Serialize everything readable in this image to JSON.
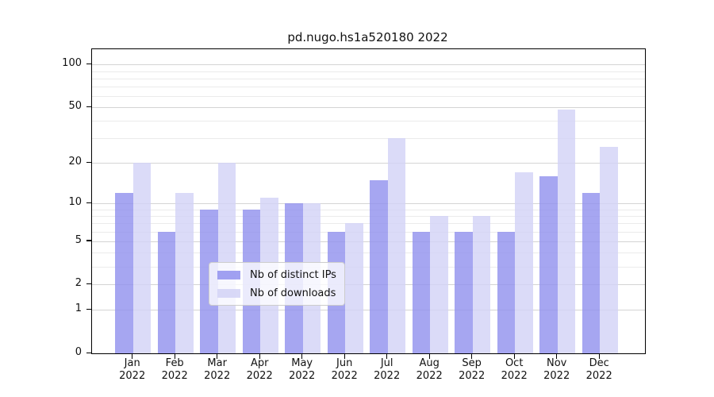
{
  "title": "pd.nugo.hs1a520180 2022",
  "chart_data": {
    "type": "bar",
    "title": "pd.nugo.hs1a520180 2022",
    "y_scale": "log10(value+1)",
    "ylim": [
      0,
      128
    ],
    "y_ticks": [
      100,
      50,
      20,
      10,
      5,
      2,
      1,
      0
    ],
    "y_minor_ticks": [
      3,
      4,
      6,
      7,
      8,
      9,
      30,
      40,
      60,
      70,
      80,
      90
    ],
    "grid": true,
    "legend_position": "lower center",
    "categories": [
      {
        "month": "Jan",
        "year": "2022"
      },
      {
        "month": "Feb",
        "year": "2022"
      },
      {
        "month": "Mar",
        "year": "2022"
      },
      {
        "month": "Apr",
        "year": "2022"
      },
      {
        "month": "May",
        "year": "2022"
      },
      {
        "month": "Jun",
        "year": "2022"
      },
      {
        "month": "Jul",
        "year": "2022"
      },
      {
        "month": "Aug",
        "year": "2022"
      },
      {
        "month": "Sep",
        "year": "2022"
      },
      {
        "month": "Oct",
        "year": "2022"
      },
      {
        "month": "Nov",
        "year": "2022"
      },
      {
        "month": "Dec",
        "year": "2022"
      }
    ],
    "series": [
      {
        "name": "Nb of distinct IPs",
        "color": "#9090ee",
        "values": [
          12,
          6,
          9,
          9,
          10,
          6,
          15,
          6,
          6,
          6,
          16,
          12
        ]
      },
      {
        "name": "Nb of downloads",
        "color": "#d2d2f6",
        "values": [
          20,
          12,
          20,
          11,
          10,
          7,
          30,
          8,
          8,
          17,
          48,
          26
        ]
      }
    ]
  },
  "colors": {
    "grid_major": "#d4d4d4",
    "grid_minor": "#ebebeb",
    "spine": "#000000",
    "text": "#111111"
  }
}
